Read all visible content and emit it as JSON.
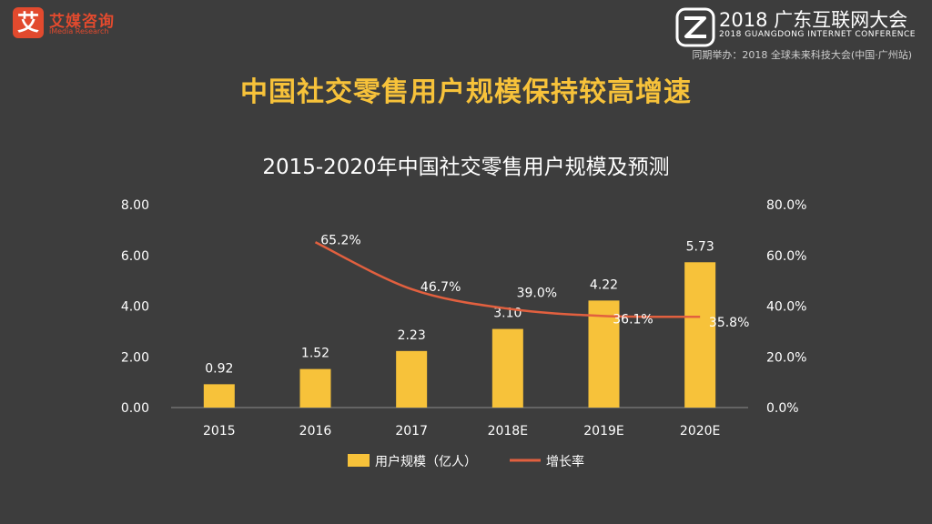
{
  "logo": {
    "mark": "艾",
    "name": "艾媒咨询",
    "name_en": "iMedia Research"
  },
  "conference": {
    "title": "2018 广东互联网大会",
    "subtitle": "2018 GUANGDONG INTERNET CONFERENCE",
    "sync_note": "同期举办：2018 全球未来科技大会(中国·广州站)"
  },
  "main_title": "中国社交零售用户规模保持较高增速",
  "chart_data": {
    "type": "bar",
    "title": "2015-2020年中国社交零售用户规模及预测",
    "categories": [
      "2015",
      "2016",
      "2017",
      "2018E",
      "2019E",
      "2020E"
    ],
    "series": [
      {
        "name": "用户规模（亿人）",
        "type": "bar",
        "axis": "left",
        "color": "#f7c23a",
        "values": [
          0.92,
          1.52,
          2.23,
          3.1,
          4.22,
          5.73
        ],
        "labels": [
          "0.92",
          "1.52",
          "2.23",
          "3.10",
          "4.22",
          "5.73"
        ]
      },
      {
        "name": "增长率",
        "type": "line",
        "axis": "right",
        "color": "#e2603f",
        "values": [
          null,
          65.2,
          46.7,
          39.0,
          36.1,
          35.8
        ],
        "labels": [
          "",
          "65.2%",
          "46.7%",
          "39.0%",
          "36.1%",
          "35.8%"
        ]
      }
    ],
    "y_left": {
      "min": 0,
      "max": 8,
      "ticks": [
        "0.00",
        "2.00",
        "4.00",
        "6.00",
        "8.00"
      ]
    },
    "y_right": {
      "min": 0,
      "max": 80,
      "ticks": [
        "0.0%",
        "20.0%",
        "40.0%",
        "60.0%",
        "80.0%"
      ]
    },
    "legend_position": "bottom",
    "grid": false
  }
}
